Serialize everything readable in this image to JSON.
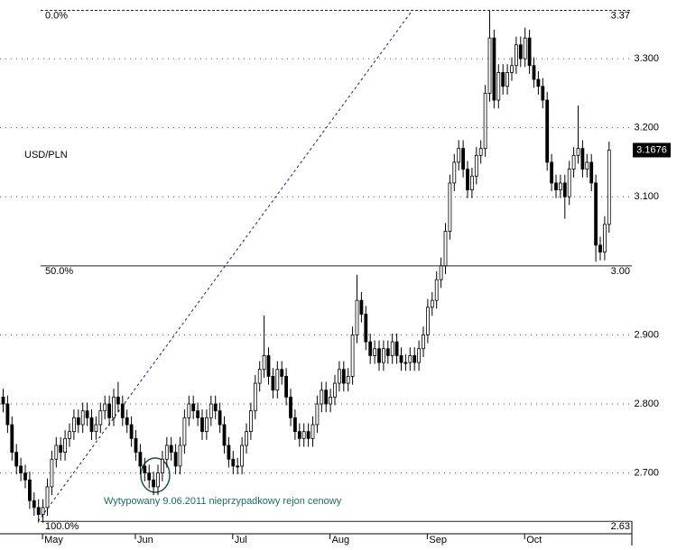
{
  "chart_data": {
    "type": "candlestick",
    "title": "USD/PLN",
    "annotation": "Wytypowany 9.06.2011 nieprzypadkowy rejon cenowy",
    "categories": [
      null,
      null,
      null,
      null,
      null,
      null,
      null,
      null,
      null,
      "May",
      null,
      null,
      null,
      null,
      null,
      null,
      null,
      null,
      null,
      null,
      null,
      null,
      null,
      null,
      null,
      null,
      null,
      null,
      null,
      null,
      "Jun",
      null,
      null,
      null,
      null,
      null,
      null,
      null,
      null,
      null,
      null,
      null,
      null,
      null,
      null,
      null,
      null,
      null,
      null,
      null,
      null,
      null,
      "Jul",
      null,
      null,
      null,
      null,
      null,
      null,
      null,
      null,
      null,
      null,
      null,
      null,
      null,
      null,
      null,
      null,
      null,
      null,
      null,
      null,
      null,
      "Aug",
      null,
      null,
      null,
      null,
      null,
      null,
      null,
      null,
      null,
      null,
      null,
      null,
      null,
      null,
      null,
      null,
      null,
      null,
      null,
      null,
      null,
      "Sep",
      null,
      null,
      null,
      null,
      null,
      null,
      null,
      null,
      null,
      null,
      null,
      null,
      null,
      null,
      null,
      null,
      null,
      null,
      null,
      null,
      null,
      "Oct",
      null,
      null,
      null,
      null,
      null,
      null,
      null,
      null,
      null,
      null,
      null,
      null,
      null,
      null,
      null,
      null,
      null,
      null,
      null
    ],
    "ohlc": [
      [
        2.81,
        2.822,
        2.788,
        2.8
      ],
      [
        2.8,
        2.812,
        2.758,
        2.77
      ],
      [
        2.77,
        2.782,
        2.718,
        2.73
      ],
      [
        2.73,
        2.742,
        2.698,
        2.71
      ],
      [
        2.71,
        2.722,
        2.688,
        2.7
      ],
      [
        2.7,
        2.712,
        2.678,
        2.69
      ],
      [
        2.69,
        2.702,
        2.648,
        2.66
      ],
      [
        2.66,
        2.672,
        2.638,
        2.65
      ],
      [
        2.65,
        2.662,
        2.628,
        2.64
      ],
      [
        2.64,
        2.662,
        2.628,
        2.65
      ],
      [
        2.65,
        2.692,
        2.638,
        2.68
      ],
      [
        2.68,
        2.732,
        2.668,
        2.72
      ],
      [
        2.72,
        2.752,
        2.708,
        2.74
      ],
      [
        2.74,
        2.752,
        2.718,
        2.73
      ],
      [
        2.73,
        2.762,
        2.718,
        2.75
      ],
      [
        2.75,
        2.772,
        2.738,
        2.76
      ],
      [
        2.76,
        2.792,
        2.748,
        2.78
      ],
      [
        2.78,
        2.792,
        2.758,
        2.77
      ],
      [
        2.77,
        2.802,
        2.758,
        2.79
      ],
      [
        2.79,
        2.802,
        2.768,
        2.78
      ],
      [
        2.78,
        2.792,
        2.748,
        2.76
      ],
      [
        2.76,
        2.782,
        2.748,
        2.77
      ],
      [
        2.77,
        2.802,
        2.758,
        2.79
      ],
      [
        2.79,
        2.812,
        2.778,
        2.8
      ],
      [
        2.8,
        2.812,
        2.768,
        2.78
      ],
      [
        2.78,
        2.822,
        2.768,
        2.81
      ],
      [
        2.81,
        2.832,
        2.788,
        2.8
      ],
      [
        2.8,
        2.812,
        2.768,
        2.78
      ],
      [
        2.78,
        2.792,
        2.758,
        2.77
      ],
      [
        2.77,
        2.782,
        2.738,
        2.75
      ],
      [
        2.75,
        2.762,
        2.718,
        2.73
      ],
      [
        2.73,
        2.742,
        2.698,
        2.71
      ],
      [
        2.71,
        2.722,
        2.688,
        2.7
      ],
      [
        2.7,
        2.712,
        2.678,
        2.69
      ],
      [
        2.69,
        2.702,
        2.668,
        2.68
      ],
      [
        2.68,
        2.712,
        2.668,
        2.7
      ],
      [
        2.7,
        2.732,
        2.688,
        2.72
      ],
      [
        2.72,
        2.752,
        2.708,
        2.74
      ],
      [
        2.74,
        2.752,
        2.718,
        2.73
      ],
      [
        2.73,
        2.742,
        2.698,
        2.71
      ],
      [
        2.71,
        2.752,
        2.698,
        2.74
      ],
      [
        2.74,
        2.792,
        2.728,
        2.78
      ],
      [
        2.78,
        2.812,
        2.768,
        2.8
      ],
      [
        2.8,
        2.812,
        2.778,
        2.79
      ],
      [
        2.79,
        2.802,
        2.768,
        2.78
      ],
      [
        2.78,
        2.792,
        2.748,
        2.76
      ],
      [
        2.76,
        2.792,
        2.748,
        2.78
      ],
      [
        2.78,
        2.812,
        2.768,
        2.8
      ],
      [
        2.8,
        2.812,
        2.778,
        2.79
      ],
      [
        2.79,
        2.802,
        2.758,
        2.77
      ],
      [
        2.77,
        2.782,
        2.728,
        2.74
      ],
      [
        2.74,
        2.752,
        2.708,
        2.72
      ],
      [
        2.72,
        2.732,
        2.698,
        2.71
      ],
      [
        2.71,
        2.722,
        2.698,
        2.71
      ],
      [
        2.71,
        2.752,
        2.698,
        2.74
      ],
      [
        2.74,
        2.772,
        2.728,
        2.76
      ],
      [
        2.76,
        2.802,
        2.748,
        2.79
      ],
      [
        2.79,
        2.842,
        2.778,
        2.83
      ],
      [
        2.83,
        2.862,
        2.818,
        2.85
      ],
      [
        2.85,
        2.928,
        2.838,
        2.87
      ],
      [
        2.87,
        2.882,
        2.828,
        2.84
      ],
      [
        2.84,
        2.852,
        2.808,
        2.82
      ],
      [
        2.82,
        2.862,
        2.808,
        2.85
      ],
      [
        2.85,
        2.862,
        2.828,
        2.84
      ],
      [
        2.84,
        2.852,
        2.798,
        2.81
      ],
      [
        2.81,
        2.822,
        2.768,
        2.78
      ],
      [
        2.78,
        2.792,
        2.748,
        2.76
      ],
      [
        2.76,
        2.772,
        2.738,
        2.75
      ],
      [
        2.75,
        2.772,
        2.738,
        2.76
      ],
      [
        2.76,
        2.772,
        2.738,
        2.75
      ],
      [
        2.75,
        2.782,
        2.738,
        2.77
      ],
      [
        2.77,
        2.812,
        2.758,
        2.8
      ],
      [
        2.8,
        2.832,
        2.788,
        2.82
      ],
      [
        2.82,
        2.832,
        2.788,
        2.8
      ],
      [
        2.8,
        2.822,
        2.788,
        2.81
      ],
      [
        2.81,
        2.842,
        2.798,
        2.83
      ],
      [
        2.83,
        2.862,
        2.818,
        2.85
      ],
      [
        2.85,
        2.862,
        2.818,
        2.83
      ],
      [
        2.83,
        2.852,
        2.818,
        2.84
      ],
      [
        2.84,
        2.912,
        2.828,
        2.9
      ],
      [
        2.9,
        2.987,
        2.888,
        2.95
      ],
      [
        2.95,
        2.962,
        2.918,
        2.93
      ],
      [
        2.93,
        2.942,
        2.878,
        2.89
      ],
      [
        2.89,
        2.902,
        2.858,
        2.87
      ],
      [
        2.87,
        2.892,
        2.858,
        2.88
      ],
      [
        2.88,
        2.892,
        2.848,
        2.86
      ],
      [
        2.86,
        2.892,
        2.848,
        2.88
      ],
      [
        2.88,
        2.892,
        2.858,
        2.87
      ],
      [
        2.87,
        2.902,
        2.858,
        2.89
      ],
      [
        2.89,
        2.902,
        2.858,
        2.87
      ],
      [
        2.87,
        2.882,
        2.848,
        2.86
      ],
      [
        2.86,
        2.872,
        2.848,
        2.86
      ],
      [
        2.86,
        2.882,
        2.848,
        2.87
      ],
      [
        2.87,
        2.882,
        2.848,
        2.86
      ],
      [
        2.86,
        2.892,
        2.848,
        2.88
      ],
      [
        2.88,
        2.912,
        2.868,
        2.9
      ],
      [
        2.9,
        2.952,
        2.888,
        2.94
      ],
      [
        2.94,
        2.962,
        2.928,
        2.95
      ],
      [
        2.95,
        2.992,
        2.938,
        2.98
      ],
      [
        2.98,
        3.012,
        2.968,
        3.0
      ],
      [
        3.0,
        3.062,
        2.988,
        3.05
      ],
      [
        3.05,
        3.132,
        3.038,
        3.12
      ],
      [
        3.12,
        3.162,
        3.108,
        3.15
      ],
      [
        3.15,
        3.182,
        3.138,
        3.17
      ],
      [
        3.17,
        3.182,
        3.128,
        3.14
      ],
      [
        3.14,
        3.152,
        3.098,
        3.11
      ],
      [
        3.11,
        3.142,
        3.098,
        3.13
      ],
      [
        3.13,
        3.172,
        3.118,
        3.16
      ],
      [
        3.16,
        3.182,
        3.148,
        3.17
      ],
      [
        3.17,
        3.262,
        3.158,
        3.25
      ],
      [
        3.25,
        3.37,
        3.238,
        3.33
      ],
      [
        3.33,
        3.342,
        3.228,
        3.24
      ],
      [
        3.24,
        3.292,
        3.228,
        3.28
      ],
      [
        3.28,
        3.292,
        3.248,
        3.26
      ],
      [
        3.26,
        3.292,
        3.248,
        3.28
      ],
      [
        3.28,
        3.302,
        3.268,
        3.29
      ],
      [
        3.29,
        3.332,
        3.278,
        3.32
      ],
      [
        3.32,
        3.332,
        3.288,
        3.3
      ],
      [
        3.3,
        3.345,
        3.288,
        3.33
      ],
      [
        3.33,
        3.342,
        3.278,
        3.29
      ],
      [
        3.29,
        3.302,
        3.258,
        3.27
      ],
      [
        3.27,
        3.282,
        3.248,
        3.26
      ],
      [
        3.26,
        3.272,
        3.228,
        3.24
      ],
      [
        3.24,
        3.252,
        3.138,
        3.15
      ],
      [
        3.15,
        3.162,
        3.108,
        3.12
      ],
      [
        3.12,
        3.132,
        3.098,
        3.11
      ],
      [
        3.11,
        3.132,
        3.098,
        3.12
      ],
      [
        3.12,
        3.132,
        3.068,
        3.1
      ],
      [
        3.1,
        3.152,
        3.088,
        3.14
      ],
      [
        3.14,
        3.172,
        3.128,
        3.16
      ],
      [
        3.16,
        3.232,
        3.148,
        3.17
      ],
      [
        3.17,
        3.182,
        3.128,
        3.14
      ],
      [
        3.14,
        3.162,
        3.128,
        3.15
      ],
      [
        3.15,
        3.162,
        3.108,
        3.12
      ],
      [
        3.12,
        3.132,
        3.006,
        3.03
      ],
      [
        3.03,
        3.042,
        3.008,
        3.02
      ],
      [
        3.02,
        3.072,
        3.008,
        3.06
      ],
      [
        3.06,
        3.18,
        3.048,
        3.1676
      ]
    ],
    "last_price": {
      "value": 3.1676,
      "label": "3.1676"
    },
    "ylim": [
      2.612,
      3.385
    ],
    "yticks": [
      {
        "value": 2.7,
        "label": "2.700"
      },
      {
        "value": 2.8,
        "label": "2.800"
      },
      {
        "value": 2.9,
        "label": "2.900"
      },
      {
        "value": 3.1,
        "label": "3.100"
      },
      {
        "value": 3.2,
        "label": "3.200"
      },
      {
        "value": 3.3,
        "label": "3.300"
      }
    ],
    "grid": true,
    "fib_levels": [
      {
        "level": "0.0%",
        "price": 3.37
      },
      {
        "level": "50.0%",
        "price": {
          "value": 3,
          "label": "3.00"
        }
      },
      {
        "level": "100.0%",
        "price": 2.63
      }
    ],
    "trendline": {
      "from": {
        "x": 8,
        "y": 2.63
      },
      "to": {
        "x": 92.6,
        "y": 3.37
      },
      "color": "#1a1a8c"
    },
    "up_color": "#ffffff",
    "down_color": "#000000"
  }
}
